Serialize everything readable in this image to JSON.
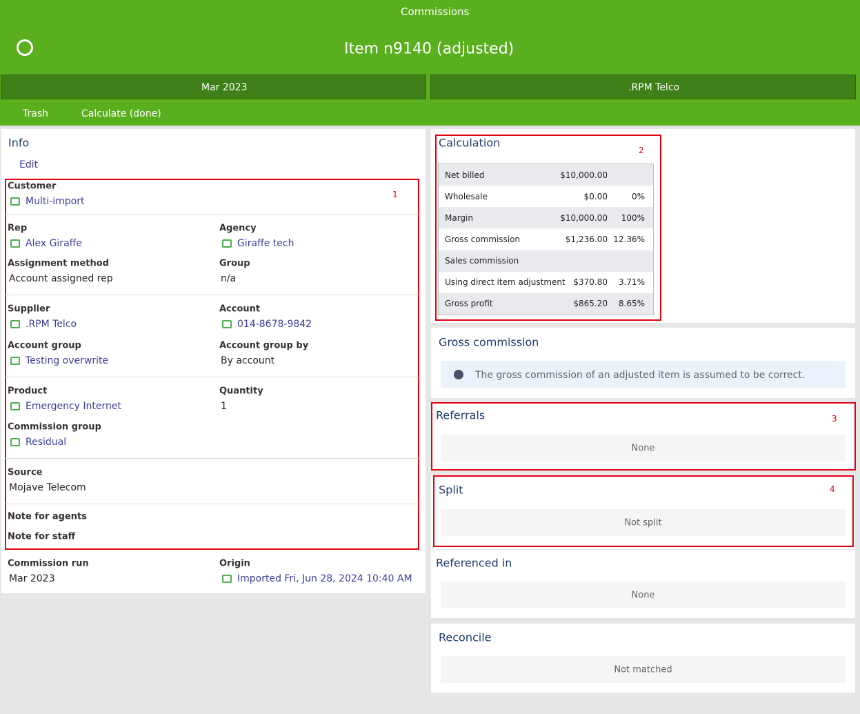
{
  "header": {
    "app": "Commissions",
    "title": "Item n9140 (adjusted)"
  },
  "nav": [
    "Mar 2023",
    ".RPM Telco"
  ],
  "toolbar": [
    "Trash",
    "Calculate (done)"
  ],
  "info": {
    "title": "Info",
    "edit": "Edit",
    "fields": [
      {
        "label": "Customer",
        "value": "Multi-import"
      },
      {
        "label": "Rep",
        "value": "Alex Giraffe"
      },
      {
        "label": "Agency",
        "value": "Giraffe tech"
      },
      {
        "label": "Assignment method",
        "value": "Account assigned rep"
      },
      {
        "label": "Group",
        "value": "n/a"
      },
      {
        "label": "Supplier",
        "value": ".RPM Telco"
      },
      {
        "label": "Account",
        "value": "014-8678-9842"
      },
      {
        "label": "Account group",
        "value": "Testing overwrite"
      },
      {
        "label": "Account group by",
        "value": "By account"
      },
      {
        "label": "Product",
        "value": "Emergency Internet"
      },
      {
        "label": "Quantity",
        "value": "1"
      },
      {
        "label": "Commission group",
        "value": "Residual"
      },
      {
        "label": "Source",
        "value": "Mojave Telecom"
      },
      {
        "label": "Note for agents"
      },
      {
        "label": "Note for staff"
      },
      {
        "label": "Commission run",
        "value": "Mar 2023"
      },
      {
        "label": "Origin",
        "value": "Imported Fri, Jun 28, 2024 10:40 AM"
      }
    ]
  },
  "calculation": {
    "title": "Calculation",
    "rows": [
      [
        "Net billed",
        "$10,000.00"
      ],
      [
        "Wholesale",
        "$0.00",
        "0%"
      ],
      [
        "Margin",
        "$10,000.00",
        "100%"
      ],
      [
        "Gross commission",
        "$1,236.00",
        "12.36%"
      ],
      [
        "Sales commission"
      ],
      [
        "Using direct item adjustment",
        "$370.80",
        "3.71%"
      ],
      [
        "Gross profit",
        "$865.20",
        "8.65%"
      ]
    ]
  },
  "gross_commission": {
    "title": "Gross commission",
    "message": "The gross commission of an adjusted item is assumed to be correct."
  },
  "referrals": {
    "title": "Referrals",
    "empty": "None"
  },
  "split": {
    "title": "Split",
    "empty": "Not split"
  },
  "referenced_in": {
    "title": "Referenced in",
    "empty": "None"
  },
  "reconcile": {
    "title": "Reconcile",
    "empty": "Not matched"
  },
  "annotations": [
    "1",
    "2",
    "3",
    "4"
  ]
}
